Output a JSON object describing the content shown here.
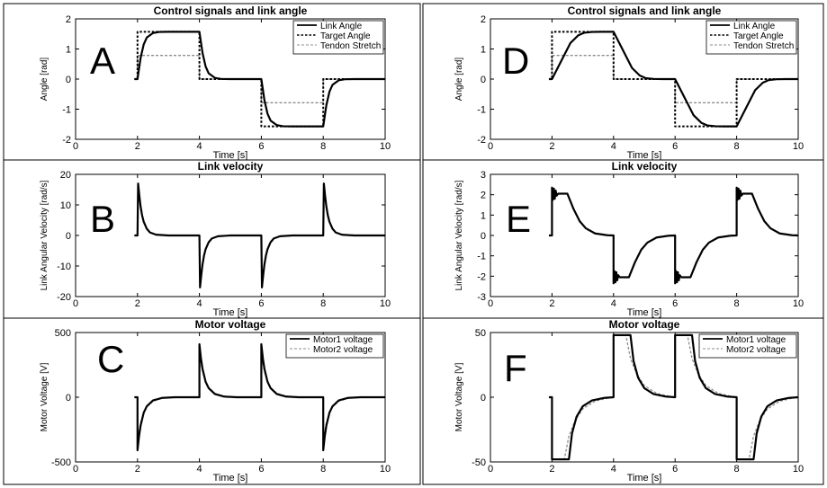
{
  "figure": {
    "panel_labels": [
      "A",
      "B",
      "C",
      "D",
      "E",
      "F"
    ]
  },
  "chart_data": [
    {
      "type": "line",
      "panel": "A",
      "title": "Control signals and link angle",
      "xlabel": "Time [s]",
      "ylabel": "Angle [rad]",
      "xlim": [
        0,
        10
      ],
      "ylim": [
        -2,
        2
      ],
      "xticks": [
        0,
        2,
        4,
        6,
        8,
        10
      ],
      "yticks": [
        2,
        1,
        0,
        -1,
        -2
      ],
      "legend_position": "top-right",
      "series": [
        {
          "name": "Link Angle",
          "style": "solid",
          "x": [
            1.9,
            2.0,
            2.05,
            2.1,
            2.2,
            2.3,
            2.5,
            2.7,
            3.0,
            4.0,
            4.05,
            4.1,
            4.2,
            4.3,
            4.5,
            4.7,
            5.0,
            6.0,
            6.05,
            6.1,
            6.2,
            6.3,
            6.5,
            6.7,
            7.0,
            8.0,
            8.05,
            8.1,
            8.2,
            8.3,
            8.5,
            8.7,
            9.0,
            10.0
          ],
          "y": [
            0,
            0,
            0.35,
            0.7,
            1.15,
            1.38,
            1.53,
            1.565,
            1.57,
            1.57,
            1.22,
            0.87,
            0.42,
            0.19,
            0.04,
            0.005,
            0,
            0,
            -0.35,
            -0.7,
            -1.15,
            -1.38,
            -1.53,
            -1.565,
            -1.57,
            -1.57,
            -1.22,
            -0.87,
            -0.42,
            -0.19,
            -0.04,
            -0.005,
            0,
            0
          ]
        },
        {
          "name": "Target Angle",
          "style": "dotted",
          "x": [
            1.9,
            2.0,
            2.0,
            4.0,
            4.0,
            6.0,
            6.0,
            8.0,
            8.0,
            10.0
          ],
          "y": [
            0,
            0,
            1.57,
            1.57,
            0,
            0,
            -1.57,
            -1.57,
            0,
            0
          ]
        },
        {
          "name": "Tendon Stretch",
          "style": "dashed-gray",
          "x": [
            1.9,
            2.0,
            2.0,
            4.0,
            4.0,
            6.0,
            6.0,
            8.0,
            8.0,
            10.0
          ],
          "y": [
            0,
            0,
            0.785,
            0.785,
            0,
            0,
            -0.785,
            -0.785,
            0,
            0
          ]
        }
      ]
    },
    {
      "type": "line",
      "panel": "B",
      "title": "Link velocity",
      "xlabel": "Time [s]",
      "ylabel": "Link Angular Velocity [rad/s]",
      "xlim": [
        0,
        10
      ],
      "ylim": [
        -20,
        20
      ],
      "xticks": [
        0,
        2,
        4,
        6,
        8,
        10
      ],
      "yticks": [
        20,
        10,
        0,
        -10,
        -20
      ],
      "series": [
        {
          "name": "",
          "style": "solid",
          "x": [
            1.9,
            2.0,
            2.02,
            2.06,
            2.1,
            2.15,
            2.2,
            2.3,
            2.4,
            2.6,
            3.0,
            4.0,
            4.02,
            4.06,
            4.1,
            4.15,
            4.2,
            4.3,
            4.4,
            4.6,
            5.0,
            6.0,
            6.02,
            6.06,
            6.1,
            6.15,
            6.2,
            6.3,
            6.4,
            6.6,
            7.0,
            8.0,
            8.02,
            8.06,
            8.1,
            8.15,
            8.2,
            8.3,
            8.4,
            8.6,
            9.0,
            10.0
          ],
          "y": [
            0,
            0,
            17,
            13,
            9.5,
            6.5,
            4.5,
            2.2,
            1.0,
            0.25,
            0,
            0,
            -17,
            -13,
            -9.5,
            -6.5,
            -4.5,
            -2.2,
            -1.0,
            -0.25,
            0,
            0,
            -17,
            -13,
            -9.5,
            -6.5,
            -4.5,
            -2.2,
            -1.0,
            -0.25,
            0,
            0,
            17,
            13,
            9.5,
            6.5,
            4.5,
            2.2,
            1.0,
            0.25,
            0,
            0
          ]
        }
      ]
    },
    {
      "type": "line",
      "panel": "C",
      "title": "Motor voltage",
      "xlabel": "Time [s]",
      "ylabel": "Motor Voltage [V]",
      "xlim": [
        0,
        10
      ],
      "ylim": [
        -500,
        500
      ],
      "xticks": [
        0,
        2,
        4,
        6,
        8,
        10
      ],
      "yticks": [
        500,
        0,
        -500
      ],
      "legend_position": "top-right",
      "series": [
        {
          "name": "Motor1 voltage",
          "style": "solid",
          "x": [
            1.9,
            2.0,
            2.0,
            2.05,
            2.1,
            2.2,
            2.3,
            2.5,
            2.8,
            3.2,
            4.0,
            4.0,
            4.05,
            4.1,
            4.2,
            4.3,
            4.5,
            4.8,
            5.2,
            6.0,
            6.0,
            6.05,
            6.1,
            6.2,
            6.3,
            6.5,
            6.8,
            7.2,
            8.0,
            8.0,
            8.05,
            8.1,
            8.2,
            8.3,
            8.5,
            8.8,
            9.2,
            10.0
          ],
          "y": [
            0,
            0,
            -410,
            -300,
            -220,
            -120,
            -70,
            -25,
            -5,
            0,
            0,
            410,
            300,
            220,
            120,
            70,
            25,
            5,
            0,
            0,
            410,
            300,
            220,
            120,
            70,
            25,
            5,
            0,
            0,
            -410,
            -300,
            -220,
            -120,
            -70,
            -25,
            -5,
            0,
            0
          ]
        },
        {
          "name": "Motor2 voltage",
          "style": "dashed-gray",
          "x": [
            1.9,
            2.0,
            2.0,
            2.05,
            2.1,
            2.2,
            2.3,
            2.5,
            2.8,
            3.2,
            4.0,
            4.0,
            4.05,
            4.1,
            4.2,
            4.3,
            4.5,
            4.8,
            5.2,
            6.0,
            6.0,
            6.05,
            6.1,
            6.2,
            6.3,
            6.5,
            6.8,
            7.2,
            8.0,
            8.0,
            8.05,
            8.1,
            8.2,
            8.3,
            8.5,
            8.8,
            9.2,
            10.0
          ],
          "y": [
            0,
            0,
            -330,
            -260,
            -200,
            -120,
            -75,
            -30,
            -8,
            0,
            0,
            330,
            260,
            200,
            120,
            75,
            30,
            8,
            0,
            0,
            330,
            260,
            200,
            120,
            75,
            30,
            8,
            0,
            0,
            -330,
            -260,
            -200,
            -120,
            -75,
            -30,
            -8,
            0,
            0
          ]
        }
      ]
    },
    {
      "type": "line",
      "panel": "D",
      "title": "Control signals and link angle",
      "xlabel": "Time [s]",
      "ylabel": "Angle [rad]",
      "xlim": [
        0,
        10
      ],
      "ylim": [
        -2,
        2
      ],
      "xticks": [
        0,
        2,
        4,
        6,
        8,
        10
      ],
      "yticks": [
        2,
        1,
        0,
        -1,
        -2
      ],
      "legend_position": "top-right",
      "series": [
        {
          "name": "Link Angle",
          "style": "solid",
          "x": [
            1.9,
            2.0,
            2.3,
            2.6,
            2.85,
            3.05,
            3.3,
            3.6,
            4.0,
            4.3,
            4.6,
            4.85,
            5.05,
            5.3,
            5.6,
            6.0,
            6.3,
            6.6,
            6.85,
            7.05,
            7.3,
            7.6,
            8.0,
            8.3,
            8.6,
            8.85,
            9.05,
            9.3,
            9.6,
            10.0
          ],
          "y": [
            0,
            0,
            0.6,
            1.2,
            1.45,
            1.54,
            1.565,
            1.57,
            1.57,
            0.97,
            0.37,
            0.12,
            0.03,
            0.005,
            0,
            0,
            -0.6,
            -1.2,
            -1.45,
            -1.54,
            -1.565,
            -1.57,
            -1.57,
            -0.97,
            -0.37,
            -0.12,
            -0.03,
            -0.005,
            0,
            0
          ]
        },
        {
          "name": "Target Angle",
          "style": "dotted",
          "x": [
            1.9,
            2.0,
            2.0,
            4.0,
            4.0,
            6.0,
            6.0,
            8.0,
            8.0,
            10.0
          ],
          "y": [
            0,
            0,
            1.57,
            1.57,
            0,
            0,
            -1.57,
            -1.57,
            0,
            0
          ]
        },
        {
          "name": "Tendon Stretch",
          "style": "dashed-gray",
          "x": [
            1.9,
            2.0,
            2.0,
            4.0,
            4.0,
            6.0,
            6.0,
            8.0,
            8.0,
            10.0
          ],
          "y": [
            0,
            0,
            0.785,
            0.785,
            0,
            0,
            -0.785,
            -0.785,
            0,
            0
          ]
        }
      ]
    },
    {
      "type": "line",
      "panel": "E",
      "title": "Link velocity",
      "xlabel": "Time [s]",
      "ylabel": "Link Angular Velocity [rad/s]",
      "xlim": [
        0,
        10
      ],
      "ylim": [
        -3,
        3
      ],
      "xticks": [
        0,
        2,
        4,
        6,
        8,
        10
      ],
      "yticks": [
        3,
        2,
        1,
        0,
        -1,
        -2,
        -3
      ],
      "series": [
        {
          "name": "",
          "style": "solid",
          "x": [
            1.9,
            2.0,
            2.0,
            2.03,
            2.06,
            2.09,
            2.12,
            2.15,
            2.2,
            2.5,
            2.7,
            2.9,
            3.1,
            3.4,
            3.8,
            4.0,
            4.0,
            4.03,
            4.06,
            4.09,
            4.12,
            4.15,
            4.2,
            4.5,
            4.7,
            4.9,
            5.1,
            5.4,
            5.8,
            6.0,
            6.0,
            6.03,
            6.06,
            6.09,
            6.12,
            6.15,
            6.2,
            6.5,
            6.7,
            6.9,
            7.1,
            7.4,
            7.8,
            8.0,
            8.0,
            8.03,
            8.06,
            8.09,
            8.12,
            8.15,
            8.2,
            8.5,
            8.7,
            8.9,
            9.1,
            9.4,
            9.8,
            10.0
          ],
          "y": [
            0,
            0,
            2.35,
            1.75,
            2.3,
            1.8,
            2.2,
            1.95,
            2.05,
            2.05,
            1.3,
            0.7,
            0.35,
            0.1,
            0.01,
            0,
            -2.35,
            -1.75,
            -2.3,
            -1.8,
            -2.2,
            -1.95,
            -2.05,
            -2.05,
            -1.3,
            -0.7,
            -0.35,
            -0.1,
            -0.01,
            0,
            -2.35,
            -1.75,
            -2.3,
            -1.8,
            -2.2,
            -1.95,
            -2.05,
            -2.05,
            -1.3,
            -0.7,
            -0.35,
            -0.1,
            -0.01,
            0,
            2.35,
            1.75,
            2.3,
            1.8,
            2.2,
            1.95,
            2.05,
            2.05,
            1.3,
            0.7,
            0.35,
            0.1,
            0.01,
            0
          ]
        }
      ]
    },
    {
      "type": "line",
      "panel": "F",
      "title": "Motor voltage",
      "xlabel": "Time [s]",
      "ylabel": "Motor Voltage [V]",
      "xlim": [
        0,
        10
      ],
      "ylim": [
        -50,
        50
      ],
      "xticks": [
        0,
        2,
        4,
        6,
        8,
        10
      ],
      "yticks": [
        50,
        0,
        -50
      ],
      "legend_position": "top-right",
      "series": [
        {
          "name": "Motor1 voltage",
          "style": "solid",
          "x": [
            1.9,
            2.0,
            2.0,
            2.55,
            2.65,
            2.8,
            3.0,
            3.3,
            3.7,
            4.0,
            4.0,
            4.55,
            4.65,
            4.8,
            5.0,
            5.3,
            5.7,
            6.0,
            6.0,
            6.55,
            6.65,
            6.8,
            7.0,
            7.3,
            7.7,
            8.0,
            8.0,
            8.55,
            8.65,
            8.8,
            9.0,
            9.3,
            9.7,
            10.0
          ],
          "y": [
            0,
            0,
            -48,
            -48,
            -28,
            -15,
            -7,
            -2.5,
            -0.5,
            0,
            48,
            48,
            28,
            15,
            7,
            2.5,
            0.5,
            0,
            48,
            48,
            28,
            15,
            7,
            2.5,
            0.5,
            0,
            -48,
            -48,
            -28,
            -15,
            -7,
            -2.5,
            -0.5,
            0
          ]
        },
        {
          "name": "Motor2 voltage",
          "style": "dashed-gray",
          "x": [
            1.9,
            2.0,
            2.0,
            2.4,
            2.55,
            2.75,
            3.0,
            3.4,
            3.8,
            4.0,
            4.0,
            4.4,
            4.55,
            4.75,
            5.0,
            5.4,
            5.8,
            6.0,
            6.0,
            6.4,
            6.55,
            6.75,
            7.0,
            7.4,
            7.8,
            8.0,
            8.0,
            8.4,
            8.55,
            8.75,
            9.0,
            9.4,
            9.8,
            10.0
          ],
          "y": [
            0,
            0,
            -48,
            -48,
            -30,
            -18,
            -9,
            -3,
            -0.8,
            0,
            48,
            48,
            30,
            18,
            9,
            3,
            0.8,
            0,
            48,
            48,
            30,
            18,
            9,
            3,
            0.8,
            0,
            -48,
            -48,
            -30,
            -18,
            -9,
            -3,
            -0.8,
            0
          ]
        }
      ]
    }
  ]
}
